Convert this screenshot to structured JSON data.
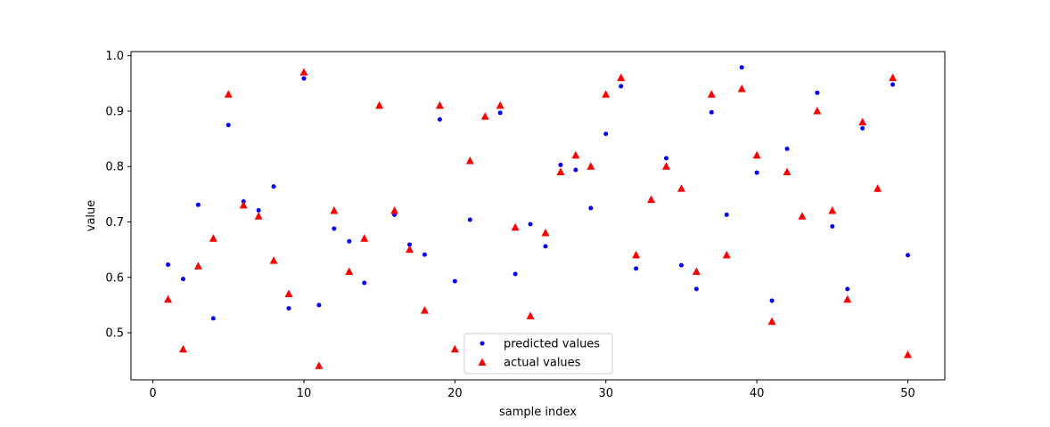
{
  "chart_data": {
    "type": "scatter",
    "title": "",
    "xlabel": "sample index",
    "ylabel": "value",
    "xlim": [
      -1.45,
      52.45
    ],
    "ylim": [
      0.415,
      1.0075
    ],
    "xticks": [
      "0",
      "10",
      "20",
      "30",
      "40",
      "50"
    ],
    "xtick_values": [
      0,
      10,
      20,
      30,
      40,
      50
    ],
    "yticks": [
      "0.5",
      "0.6",
      "0.7",
      "0.8",
      "0.9",
      "1.0"
    ],
    "ytick_values": [
      0.5,
      0.6,
      0.7,
      0.8,
      0.9,
      1.0
    ],
    "grid": false,
    "legend_position": "lower-center",
    "x": [
      1,
      2,
      3,
      4,
      5,
      6,
      7,
      8,
      9,
      10,
      11,
      12,
      13,
      14,
      15,
      16,
      17,
      18,
      19,
      20,
      21,
      22,
      23,
      24,
      25,
      26,
      27,
      28,
      29,
      30,
      31,
      32,
      33,
      34,
      35,
      36,
      37,
      38,
      39,
      40,
      41,
      42,
      43,
      44,
      45,
      46,
      47,
      48,
      49,
      50
    ],
    "series": [
      {
        "name": "predicted values",
        "marker": "circle",
        "color": "#0000ff",
        "values": [
          0.623,
          0.597,
          0.731,
          0.526,
          0.875,
          0.737,
          0.721,
          0.764,
          0.544,
          0.959,
          0.55,
          0.688,
          0.665,
          0.59,
          0.91,
          0.713,
          0.659,
          0.641,
          0.885,
          0.593,
          0.704,
          0.889,
          0.897,
          0.606,
          0.696,
          0.656,
          0.803,
          0.794,
          0.725,
          0.859,
          0.945,
          0.616,
          0.74,
          0.815,
          0.622,
          0.579,
          0.898,
          0.713,
          0.979,
          0.789,
          0.558,
          0.832,
          0.709,
          0.933,
          0.692,
          0.579,
          0.869,
          0.758,
          0.948,
          0.64
        ]
      },
      {
        "name": "actual values",
        "marker": "triangle",
        "color": "#ff0000",
        "values": [
          0.56,
          0.47,
          0.62,
          0.67,
          0.93,
          0.73,
          0.71,
          0.63,
          0.57,
          0.97,
          0.44,
          0.72,
          0.61,
          0.67,
          0.91,
          0.72,
          0.65,
          0.54,
          0.91,
          0.47,
          0.81,
          0.89,
          0.91,
          0.69,
          0.53,
          0.68,
          0.79,
          0.82,
          0.8,
          0.93,
          0.96,
          0.64,
          0.74,
          0.8,
          0.76,
          0.61,
          0.93,
          0.64,
          0.94,
          0.82,
          0.52,
          0.79,
          0.71,
          0.9,
          0.72,
          0.56,
          0.88,
          0.76,
          0.96,
          0.46
        ]
      }
    ]
  }
}
